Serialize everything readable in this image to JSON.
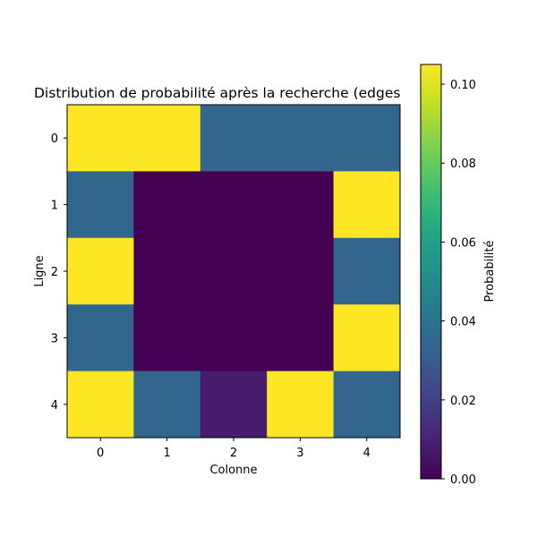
{
  "chart_data": {
    "type": "heatmap",
    "title": "Distribution de probabilité après la recherche (edges",
    "xlabel": "Colonne",
    "ylabel": "Ligne",
    "x_ticks": [
      "0",
      "1",
      "2",
      "3",
      "4"
    ],
    "y_ticks": [
      "0",
      "1",
      "2",
      "3",
      "4"
    ],
    "values": [
      [
        0.105,
        0.105,
        0.0345,
        0.0345,
        0.0345
      ],
      [
        0.0345,
        0.0,
        0.0,
        0.0,
        0.105
      ],
      [
        0.105,
        0.0,
        0.0,
        0.0,
        0.0345
      ],
      [
        0.0345,
        0.0,
        0.0,
        0.0,
        0.105
      ],
      [
        0.105,
        0.0345,
        0.008,
        0.105,
        0.0345
      ]
    ],
    "colorbar": {
      "label": "Probabilité",
      "min": 0.0,
      "max": 0.105,
      "ticks": [
        0.0,
        0.02,
        0.04,
        0.06,
        0.08,
        0.1
      ],
      "tick_labels": [
        "0.00",
        "0.02",
        "0.04",
        "0.06",
        "0.08",
        "0.10"
      ],
      "colormap": "viridis"
    }
  }
}
